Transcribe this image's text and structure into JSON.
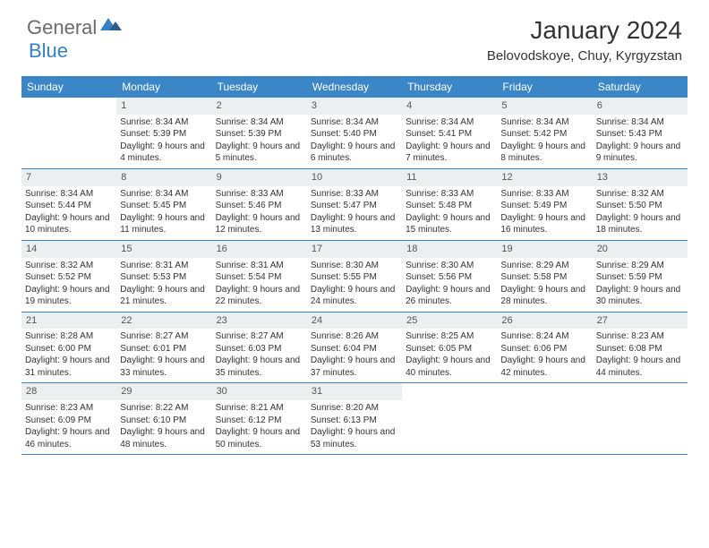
{
  "logo": {
    "general": "General",
    "blue": "Blue"
  },
  "title": "January 2024",
  "location": "Belovodskoye, Chuy, Kyrgyzstan",
  "colors": {
    "header_bg": "#3b86c7",
    "header_text": "#ffffff",
    "daynum_bg": "#eceef0",
    "border": "#3b86c7",
    "logo_gray": "#6b6b6b",
    "logo_blue": "#3680c4"
  },
  "day_names": [
    "Sunday",
    "Monday",
    "Tuesday",
    "Wednesday",
    "Thursday",
    "Friday",
    "Saturday"
  ],
  "weeks": [
    [
      {
        "n": "",
        "sr": "",
        "ss": "",
        "dl": ""
      },
      {
        "n": "1",
        "sr": "Sunrise: 8:34 AM",
        "ss": "Sunset: 5:39 PM",
        "dl": "Daylight: 9 hours and 4 minutes."
      },
      {
        "n": "2",
        "sr": "Sunrise: 8:34 AM",
        "ss": "Sunset: 5:39 PM",
        "dl": "Daylight: 9 hours and 5 minutes."
      },
      {
        "n": "3",
        "sr": "Sunrise: 8:34 AM",
        "ss": "Sunset: 5:40 PM",
        "dl": "Daylight: 9 hours and 6 minutes."
      },
      {
        "n": "4",
        "sr": "Sunrise: 8:34 AM",
        "ss": "Sunset: 5:41 PM",
        "dl": "Daylight: 9 hours and 7 minutes."
      },
      {
        "n": "5",
        "sr": "Sunrise: 8:34 AM",
        "ss": "Sunset: 5:42 PM",
        "dl": "Daylight: 9 hours and 8 minutes."
      },
      {
        "n": "6",
        "sr": "Sunrise: 8:34 AM",
        "ss": "Sunset: 5:43 PM",
        "dl": "Daylight: 9 hours and 9 minutes."
      }
    ],
    [
      {
        "n": "7",
        "sr": "Sunrise: 8:34 AM",
        "ss": "Sunset: 5:44 PM",
        "dl": "Daylight: 9 hours and 10 minutes."
      },
      {
        "n": "8",
        "sr": "Sunrise: 8:34 AM",
        "ss": "Sunset: 5:45 PM",
        "dl": "Daylight: 9 hours and 11 minutes."
      },
      {
        "n": "9",
        "sr": "Sunrise: 8:33 AM",
        "ss": "Sunset: 5:46 PM",
        "dl": "Daylight: 9 hours and 12 minutes."
      },
      {
        "n": "10",
        "sr": "Sunrise: 8:33 AM",
        "ss": "Sunset: 5:47 PM",
        "dl": "Daylight: 9 hours and 13 minutes."
      },
      {
        "n": "11",
        "sr": "Sunrise: 8:33 AM",
        "ss": "Sunset: 5:48 PM",
        "dl": "Daylight: 9 hours and 15 minutes."
      },
      {
        "n": "12",
        "sr": "Sunrise: 8:33 AM",
        "ss": "Sunset: 5:49 PM",
        "dl": "Daylight: 9 hours and 16 minutes."
      },
      {
        "n": "13",
        "sr": "Sunrise: 8:32 AM",
        "ss": "Sunset: 5:50 PM",
        "dl": "Daylight: 9 hours and 18 minutes."
      }
    ],
    [
      {
        "n": "14",
        "sr": "Sunrise: 8:32 AM",
        "ss": "Sunset: 5:52 PM",
        "dl": "Daylight: 9 hours and 19 minutes."
      },
      {
        "n": "15",
        "sr": "Sunrise: 8:31 AM",
        "ss": "Sunset: 5:53 PM",
        "dl": "Daylight: 9 hours and 21 minutes."
      },
      {
        "n": "16",
        "sr": "Sunrise: 8:31 AM",
        "ss": "Sunset: 5:54 PM",
        "dl": "Daylight: 9 hours and 22 minutes."
      },
      {
        "n": "17",
        "sr": "Sunrise: 8:30 AM",
        "ss": "Sunset: 5:55 PM",
        "dl": "Daylight: 9 hours and 24 minutes."
      },
      {
        "n": "18",
        "sr": "Sunrise: 8:30 AM",
        "ss": "Sunset: 5:56 PM",
        "dl": "Daylight: 9 hours and 26 minutes."
      },
      {
        "n": "19",
        "sr": "Sunrise: 8:29 AM",
        "ss": "Sunset: 5:58 PM",
        "dl": "Daylight: 9 hours and 28 minutes."
      },
      {
        "n": "20",
        "sr": "Sunrise: 8:29 AM",
        "ss": "Sunset: 5:59 PM",
        "dl": "Daylight: 9 hours and 30 minutes."
      }
    ],
    [
      {
        "n": "21",
        "sr": "Sunrise: 8:28 AM",
        "ss": "Sunset: 6:00 PM",
        "dl": "Daylight: 9 hours and 31 minutes."
      },
      {
        "n": "22",
        "sr": "Sunrise: 8:27 AM",
        "ss": "Sunset: 6:01 PM",
        "dl": "Daylight: 9 hours and 33 minutes."
      },
      {
        "n": "23",
        "sr": "Sunrise: 8:27 AM",
        "ss": "Sunset: 6:03 PM",
        "dl": "Daylight: 9 hours and 35 minutes."
      },
      {
        "n": "24",
        "sr": "Sunrise: 8:26 AM",
        "ss": "Sunset: 6:04 PM",
        "dl": "Daylight: 9 hours and 37 minutes."
      },
      {
        "n": "25",
        "sr": "Sunrise: 8:25 AM",
        "ss": "Sunset: 6:05 PM",
        "dl": "Daylight: 9 hours and 40 minutes."
      },
      {
        "n": "26",
        "sr": "Sunrise: 8:24 AM",
        "ss": "Sunset: 6:06 PM",
        "dl": "Daylight: 9 hours and 42 minutes."
      },
      {
        "n": "27",
        "sr": "Sunrise: 8:23 AM",
        "ss": "Sunset: 6:08 PM",
        "dl": "Daylight: 9 hours and 44 minutes."
      }
    ],
    [
      {
        "n": "28",
        "sr": "Sunrise: 8:23 AM",
        "ss": "Sunset: 6:09 PM",
        "dl": "Daylight: 9 hours and 46 minutes."
      },
      {
        "n": "29",
        "sr": "Sunrise: 8:22 AM",
        "ss": "Sunset: 6:10 PM",
        "dl": "Daylight: 9 hours and 48 minutes."
      },
      {
        "n": "30",
        "sr": "Sunrise: 8:21 AM",
        "ss": "Sunset: 6:12 PM",
        "dl": "Daylight: 9 hours and 50 minutes."
      },
      {
        "n": "31",
        "sr": "Sunrise: 8:20 AM",
        "ss": "Sunset: 6:13 PM",
        "dl": "Daylight: 9 hours and 53 minutes."
      },
      {
        "n": "",
        "sr": "",
        "ss": "",
        "dl": ""
      },
      {
        "n": "",
        "sr": "",
        "ss": "",
        "dl": ""
      },
      {
        "n": "",
        "sr": "",
        "ss": "",
        "dl": ""
      }
    ]
  ]
}
